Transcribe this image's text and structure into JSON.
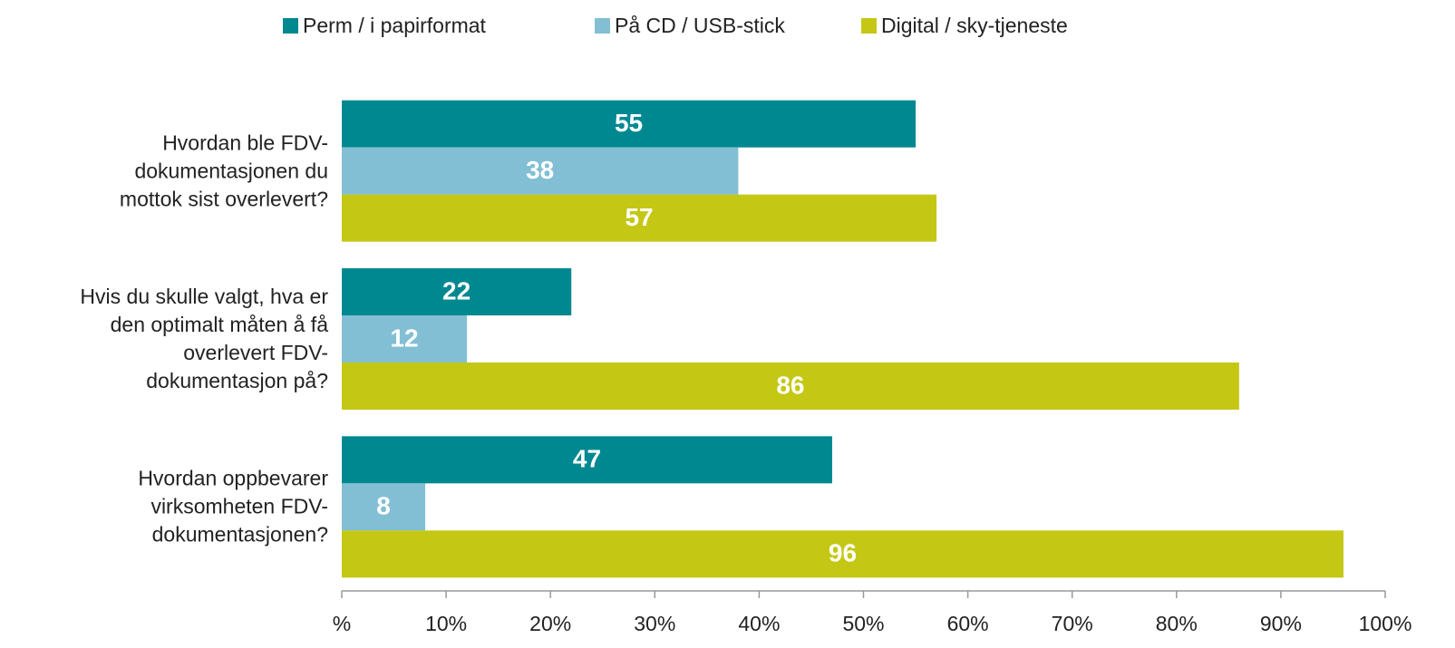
{
  "chart_data": {
    "type": "bar",
    "orientation": "horizontal",
    "categories": [
      "Hvordan ble FDV-\ndokumentasjonen du\nmottok sist overlevert?",
      "Hvis du skulle valgt, hva er\nden optimalt måten å få\noverlevert FDV-\ndokumentasjon på?",
      "Hvordan oppbevarer\nvirksomheten FDV-\ndokumentasjonen?"
    ],
    "series": [
      {
        "name": "Perm / i papirformat",
        "color": "#008891",
        "values": [
          55,
          22,
          47
        ]
      },
      {
        "name": "På CD / USB-stick",
        "color": "#82bfd4",
        "values": [
          38,
          12,
          8
        ]
      },
      {
        "name": "Digital / sky-tjeneste",
        "color": "#c4c714",
        "values": [
          57,
          86,
          96
        ]
      }
    ],
    "xlim": [
      0,
      100
    ],
    "xticks": [
      {
        "value": 0,
        "label": "%"
      },
      {
        "value": 10,
        "label": "10%"
      },
      {
        "value": 20,
        "label": "20%"
      },
      {
        "value": 30,
        "label": "30%"
      },
      {
        "value": 40,
        "label": "40%"
      },
      {
        "value": 50,
        "label": "50%"
      },
      {
        "value": 60,
        "label": "60%"
      },
      {
        "value": 70,
        "label": "70%"
      },
      {
        "value": 80,
        "label": "80%"
      },
      {
        "value": 90,
        "label": "90%"
      },
      {
        "value": 100,
        "label": "100%"
      }
    ],
    "legend": "top",
    "grid": false
  }
}
